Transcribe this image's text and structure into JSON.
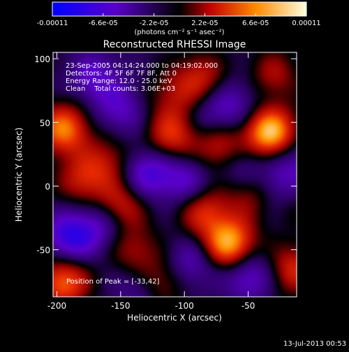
{
  "colorbar": {
    "tick_labels": [
      "-0.00011",
      "-6.6e-05",
      "-2.2e-05",
      "2.2e-05",
      "6.6e-05",
      "0.00011"
    ],
    "tick_values": [
      -0.00011,
      -6.6e-05,
      -2.2e-05,
      2.2e-05,
      6.6e-05,
      0.00011
    ],
    "unit_label": "(photons cm⁻² s⁻¹ asec⁻²)"
  },
  "chart_data": {
    "type": "heatmap",
    "title": "Reconstructed RHESSI Image",
    "xlabel": "Heliocentric X (arcsec)",
    "ylabel": "Heliocentric Y (arcsec)",
    "xlim": [
      -203,
      -12
    ],
    "ylim": [
      -87,
      105
    ],
    "x_ticks": [
      -200,
      -150,
      -100,
      -50
    ],
    "y_ticks": [
      -50,
      0,
      50,
      100
    ],
    "annotations": [
      "23-Sep-2005 04:14:24.000 to 04:19:02.000",
      "Detectors: 4F 5F 6F 7F 8F, Att 0",
      "Energy Range: 12.0 - 25.0 keV",
      "Clean    Total counts: 3.06E+03"
    ],
    "peak_label": "Position of Peak = [-33,42]",
    "peak": {
      "x": -33,
      "y": 42
    },
    "colorbar_range": [
      -0.00011,
      0.00011
    ],
    "blobs": [
      {
        "x": -33,
        "y": 42,
        "v": 1.0
      },
      {
        "x": -110,
        "y": 40,
        "v": 0.55
      },
      {
        "x": -72,
        "y": 30,
        "v": 0.5
      },
      {
        "x": -88,
        "y": 85,
        "v": 0.45
      },
      {
        "x": -30,
        "y": 88,
        "v": 0.35
      },
      {
        "x": -195,
        "y": 45,
        "v": 0.75
      },
      {
        "x": -180,
        "y": 5,
        "v": 0.45
      },
      {
        "x": -150,
        "y": -15,
        "v": 0.5
      },
      {
        "x": -160,
        "y": 20,
        "v": 0.35
      },
      {
        "x": -65,
        "y": -45,
        "v": 0.9
      },
      {
        "x": -85,
        "y": -20,
        "v": 0.5
      },
      {
        "x": -20,
        "y": -10,
        "v": 0.45
      },
      {
        "x": -15,
        "y": -65,
        "v": 0.5
      },
      {
        "x": -120,
        "y": -75,
        "v": 0.4
      },
      {
        "x": -195,
        "y": -75,
        "v": 0.7
      },
      {
        "x": -140,
        "y": -50,
        "v": 0.35
      },
      {
        "x": -48,
        "y": -5,
        "v": 0.4
      },
      {
        "x": -110,
        "y": 70,
        "v": 0.3
      },
      {
        "x": -190,
        "y": -40,
        "v": -0.6
      },
      {
        "x": -165,
        "y": -30,
        "v": -0.35
      },
      {
        "x": -130,
        "y": 10,
        "v": -0.5
      },
      {
        "x": -100,
        "y": 5,
        "v": -0.4
      },
      {
        "x": -25,
        "y": -5,
        "v": -0.6
      },
      {
        "x": -55,
        "y": 15,
        "v": -0.35
      },
      {
        "x": -95,
        "y": -60,
        "v": -0.35
      },
      {
        "x": -50,
        "y": -70,
        "v": -0.45
      },
      {
        "x": -150,
        "y": 60,
        "v": -0.35
      },
      {
        "x": -170,
        "y": 85,
        "v": -0.4
      },
      {
        "x": -60,
        "y": 65,
        "v": -0.3
      },
      {
        "x": -135,
        "y": -80,
        "v": -0.3
      },
      {
        "x": -80,
        "y": 55,
        "v": -0.25
      },
      {
        "x": -15,
        "y": 20,
        "v": -0.3
      }
    ]
  },
  "footer": {
    "date": "13-Jul-2013 00:53"
  }
}
